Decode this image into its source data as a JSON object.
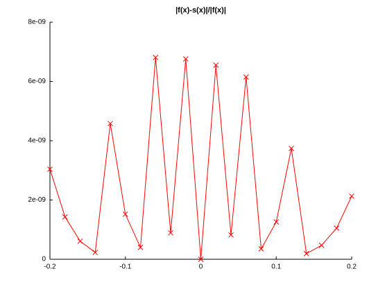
{
  "chart_data": {
    "type": "line",
    "title": "|f(x)-s(x)|/|f(x)|",
    "x": [
      -0.2,
      -0.18,
      -0.16,
      -0.14,
      -0.12,
      -0.1,
      -0.08,
      -0.06,
      -0.04,
      -0.02,
      0,
      0.02,
      0.04,
      0.06,
      0.08,
      0.1,
      0.12,
      0.14,
      0.16,
      0.18,
      0.2
    ],
    "values": [
      3.04e-09,
      1.43e-09,
      6.1e-10,
      2.3e-10,
      4.58e-09,
      1.52e-09,
      4e-10,
      6.81e-09,
      8.9e-10,
      6.76e-09,
      0,
      6.55e-09,
      8.2e-10,
      6.15e-09,
      3.5e-10,
      1.26e-09,
      3.74e-09,
      1.9e-10,
      4.7e-10,
      1.05e-09,
      2.13e-09
    ],
    "color": "#ff0000",
    "marker": "x",
    "xlim": [
      -0.2,
      0.2
    ],
    "xticks": [
      -0.2,
      -0.1,
      0,
      0.1,
      0.2
    ],
    "ylim": [
      0,
      8e-09
    ],
    "yticks": [
      0,
      {
        "value": 2e-09,
        "label": "2e-09"
      },
      {
        "value": 4e-09,
        "label": "4e-09"
      },
      {
        "value": 6e-09,
        "label": "6e-09"
      },
      {
        "value": 8e-09,
        "label": "8e-09"
      }
    ],
    "grid": false
  }
}
